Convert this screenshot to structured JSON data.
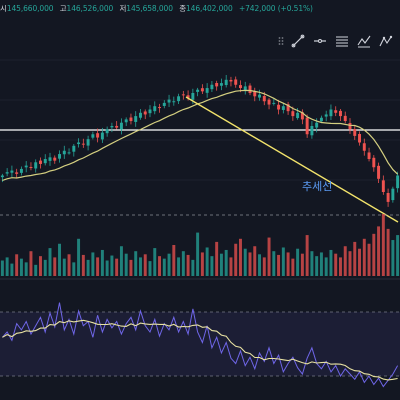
{
  "legend": {
    "open_label": "시",
    "open_value": "145,660,000",
    "high_label": "고",
    "high_value": "146,526,000",
    "low_label": "저",
    "low_value": "145,658,000",
    "close_label": "종",
    "close_value": "146,402,000",
    "change": "+742,000 (+0.51%)"
  },
  "toolbar": [
    {
      "icon": "grip-icon"
    },
    {
      "icon": "trend-line-icon"
    },
    {
      "icon": "horizontal-line-icon"
    },
    {
      "icon": "fib-retracement-icon"
    },
    {
      "icon": "brush-icon"
    },
    {
      "icon": "pattern-icon"
    }
  ],
  "annotations": {
    "trendline_label": "추세선"
  },
  "colors": {
    "background": "#131722",
    "up": "#26a69a",
    "down": "#ef5350",
    "ma": "#d4cf80",
    "trendline": "#f2e36b",
    "rsi": "#6f66e8",
    "rsi_ma": "#e8e2a2",
    "horizontal_line": "#ffffff",
    "label": "#5b9cf5"
  },
  "chart_data": {
    "type": "candlestick",
    "series": [
      {
        "name": "price_close",
        "values": [
          0.3,
          0.32,
          0.33,
          0.31,
          0.34,
          0.36,
          0.35,
          0.38,
          0.37,
          0.4,
          0.41,
          0.39,
          0.43,
          0.45,
          0.44,
          0.48,
          0.5,
          0.49,
          0.52,
          0.55,
          0.53,
          0.56,
          0.58,
          0.6,
          0.59,
          0.62,
          0.64,
          0.63,
          0.66,
          0.68,
          0.67,
          0.7,
          0.72,
          0.71,
          0.74,
          0.76,
          0.75,
          0.78,
          0.79,
          0.77,
          0.8,
          0.82,
          0.81,
          0.83,
          0.85,
          0.84,
          0.86,
          0.88,
          0.87,
          0.85,
          0.83,
          0.84,
          0.8,
          0.78,
          0.79,
          0.75,
          0.73,
          0.74,
          0.7,
          0.72,
          0.69,
          0.66,
          0.68,
          0.64,
          0.55,
          0.6,
          0.62,
          0.65,
          0.67,
          0.7,
          0.68,
          0.66,
          0.63,
          0.58,
          0.54,
          0.5,
          0.45,
          0.4,
          0.35,
          0.28,
          0.2,
          0.14,
          0.22,
          0.3
        ]
      },
      {
        "name": "volume",
        "values": [
          0.25,
          0.3,
          0.2,
          0.35,
          0.28,
          0.22,
          0.4,
          0.18,
          0.32,
          0.26,
          0.45,
          0.3,
          0.52,
          0.28,
          0.35,
          0.22,
          0.6,
          0.34,
          0.26,
          0.38,
          0.3,
          0.42,
          0.25,
          0.33,
          0.28,
          0.48,
          0.36,
          0.26,
          0.4,
          0.3,
          0.35,
          0.24,
          0.45,
          0.32,
          0.28,
          0.36,
          0.5,
          0.3,
          0.4,
          0.34,
          0.26,
          0.7,
          0.38,
          0.46,
          0.32,
          0.55,
          0.36,
          0.42,
          0.3,
          0.52,
          0.6,
          0.44,
          0.38,
          0.48,
          0.35,
          0.3,
          0.62,
          0.4,
          0.34,
          0.46,
          0.38,
          0.28,
          0.44,
          0.36,
          0.66,
          0.4,
          0.32,
          0.38,
          0.3,
          0.42,
          0.36,
          0.3,
          0.48,
          0.4,
          0.55,
          0.44,
          0.6,
          0.52,
          0.68,
          0.8,
          1.0,
          0.76,
          0.58,
          0.66
        ]
      },
      {
        "name": "rsi",
        "values": [
          0.55,
          0.6,
          0.52,
          0.68,
          0.62,
          0.7,
          0.58,
          0.66,
          0.74,
          0.6,
          0.78,
          0.65,
          0.88,
          0.62,
          0.72,
          0.58,
          0.8,
          0.66,
          0.7,
          0.55,
          0.76,
          0.6,
          0.72,
          0.64,
          0.7,
          0.58,
          0.68,
          0.74,
          0.62,
          0.8,
          0.66,
          0.6,
          0.72,
          0.56,
          0.68,
          0.62,
          0.74,
          0.6,
          0.7,
          0.58,
          0.82,
          0.6,
          0.5,
          0.66,
          0.45,
          0.55,
          0.4,
          0.5,
          0.35,
          0.3,
          0.42,
          0.28,
          0.36,
          0.25,
          0.4,
          0.32,
          0.45,
          0.3,
          0.38,
          0.22,
          0.3,
          0.36,
          0.26,
          0.2,
          0.35,
          0.45,
          0.3,
          0.25,
          0.32,
          0.22,
          0.28,
          0.18,
          0.25,
          0.2,
          0.15,
          0.22,
          0.12,
          0.18,
          0.1,
          0.16,
          0.08,
          0.14,
          0.2,
          0.28
        ]
      }
    ]
  }
}
